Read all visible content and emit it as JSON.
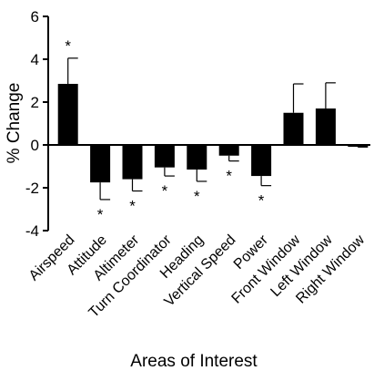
{
  "chart_data": {
    "type": "bar",
    "title": "",
    "xlabel": "Areas of Interest",
    "ylabel": "% Change",
    "ylim": [
      -4,
      6
    ],
    "yticks": [
      -4,
      -2,
      0,
      2,
      4,
      6
    ],
    "ytick_labels": [
      "-4",
      "-2",
      "0",
      "2",
      "4",
      "6"
    ],
    "grid": false,
    "legend": "none",
    "bar_color": "#000000",
    "categories": [
      "Airspeed",
      "Attitude",
      "Altimeter",
      "Turn Coordinator",
      "Heading",
      "Vertical Speed",
      "Power",
      "Front Window",
      "Left Window",
      "Right Window"
    ],
    "values": [
      2.85,
      -1.75,
      -1.6,
      -1.05,
      -1.15,
      -0.5,
      -1.45,
      1.5,
      1.7,
      -0.05
    ],
    "errors": [
      1.2,
      0.8,
      0.55,
      0.4,
      0.55,
      0.25,
      0.45,
      1.35,
      1.2,
      0.05
    ],
    "significance": [
      "*",
      "*",
      "*",
      "*",
      "*",
      "*",
      "*",
      "",
      "",
      ""
    ]
  }
}
